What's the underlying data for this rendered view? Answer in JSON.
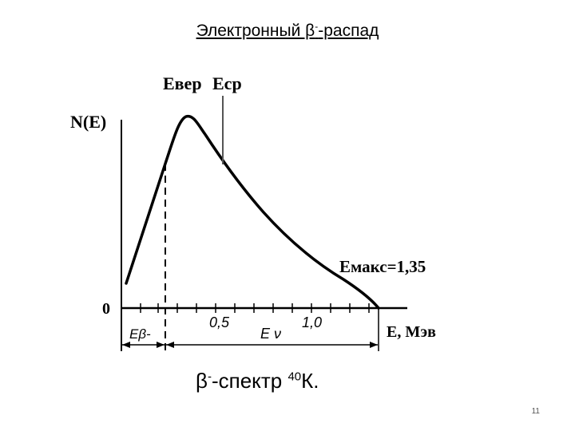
{
  "slide": {
    "title_prefix": "Электронный β",
    "title_sup": "-",
    "title_suffix": "-распад",
    "caption_prefix": "β",
    "caption_sup1": "-",
    "caption_middle": "-спектр ",
    "caption_sup2": "40",
    "caption_suffix": "К.",
    "page_number": "11"
  },
  "diagram": {
    "y_axis_label": "N(E)",
    "x_axis_label": "E, Мэв",
    "origin_label": "0",
    "tick_label_05": "0,5",
    "tick_label_10": "1,0",
    "e_ver_label": "Eвер",
    "e_sr_label": "Eср",
    "e_max_label": "Eмакс=1,35",
    "e_beta_label": "Eβ-",
    "e_nu_label": "E ν"
  }
}
